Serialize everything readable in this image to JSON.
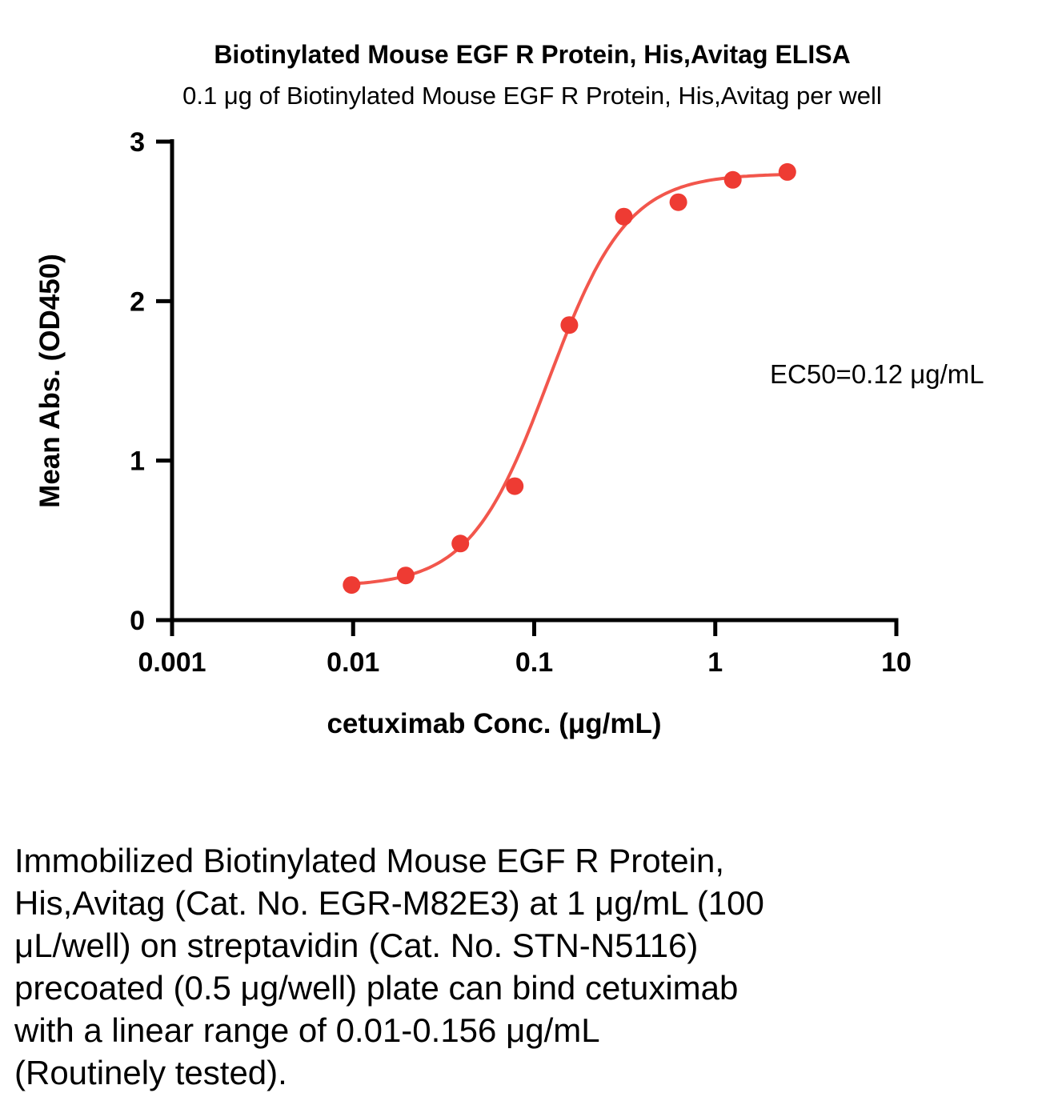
{
  "chart_data": {
    "type": "scatter",
    "title": "Biotinylated Mouse EGF R Protein, His,Avitag ELISA",
    "subtitle": "0.1 μg of Biotinylated Mouse EGF R Protein, His,Avitag per well",
    "xlabel": "cetuximab Conc. (μg/mL)",
    "ylabel": "Mean Abs. (OD450)",
    "x_scale": "log10",
    "xlim": [
      0.001,
      10
    ],
    "ylim": [
      0,
      3
    ],
    "x_ticks": [
      0.001,
      0.01,
      0.1,
      1,
      10
    ],
    "x_tick_labels": [
      "0.001",
      "0.01",
      "0.1",
      "1",
      "10"
    ],
    "y_ticks": [
      0,
      1,
      2,
      3
    ],
    "y_tick_labels": [
      "0",
      "1",
      "2",
      "3"
    ],
    "grid": false,
    "legend": false,
    "annotation": "EC50=0.12 μg/mL",
    "marker_color": "#ee3b33",
    "line_color": "#f2564c",
    "axis_color": "#000000",
    "points": [
      {
        "x": 0.0098,
        "y": 0.22
      },
      {
        "x": 0.0195,
        "y": 0.28
      },
      {
        "x": 0.0391,
        "y": 0.48
      },
      {
        "x": 0.0781,
        "y": 0.84
      },
      {
        "x": 0.1563,
        "y": 1.85
      },
      {
        "x": 0.3125,
        "y": 2.53
      },
      {
        "x": 0.625,
        "y": 2.62
      },
      {
        "x": 1.25,
        "y": 2.76
      },
      {
        "x": 2.5,
        "y": 2.81
      }
    ],
    "fit": {
      "model": "4PL",
      "bottom": 0.21,
      "top": 2.8,
      "ec50": 0.12,
      "hill": 2.0,
      "x_start": 0.0098,
      "x_end": 2.5
    }
  },
  "caption": {
    "lines": [
      "Immobilized Biotinylated Mouse EGF R Protein,",
      "His,Avitag (Cat. No. EGR-M82E3) at 1 μg/mL (100",
      "μL/well) on streptavidin (Cat. No. STN-N5116)",
      "precoated (0.5 μg/well) plate can bind cetuximab",
      "with a linear range of 0.01-0.156 μg/mL",
      "(Routinely tested)."
    ]
  }
}
